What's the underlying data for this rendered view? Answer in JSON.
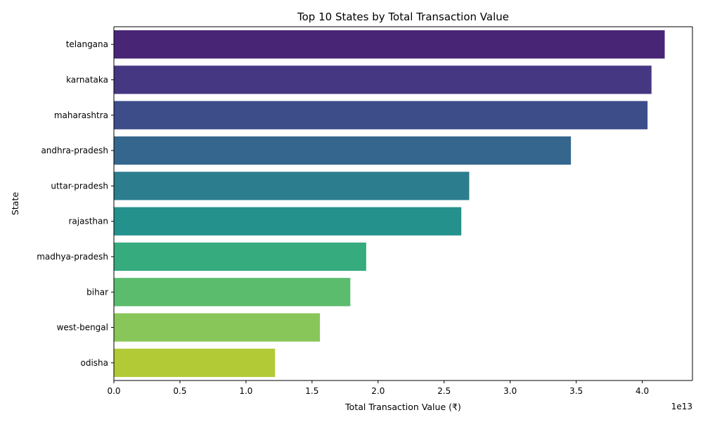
{
  "chart_data": {
    "type": "bar",
    "orientation": "horizontal",
    "title": "Top 10 States by Total Transaction Value",
    "xlabel": "Total Transaction Value (₹)",
    "ylabel": "State",
    "x_scale_note": "1e13",
    "categories": [
      "telangana",
      "karnataka",
      "maharashtra",
      "andhra-pradesh",
      "uttar-pradesh",
      "rajasthan",
      "madhya-pradesh",
      "bihar",
      "west-bengal",
      "odisha"
    ],
    "values": [
      4.17,
      4.07,
      4.04,
      3.46,
      2.69,
      2.63,
      1.91,
      1.79,
      1.56,
      1.22
    ],
    "xlim": [
      0,
      4.38
    ],
    "xticks": [
      "0.0",
      "0.5",
      "1.0",
      "1.5",
      "2.0",
      "2.5",
      "3.0",
      "3.5",
      "4.0"
    ],
    "colors": [
      "#482575",
      "#453781",
      "#3d4d8a",
      "#35668d",
      "#2c7d8e",
      "#24918d",
      "#35ab7e",
      "#5cbc6d",
      "#88c659",
      "#b2ca36"
    ],
    "grid": false,
    "legend": "none"
  }
}
